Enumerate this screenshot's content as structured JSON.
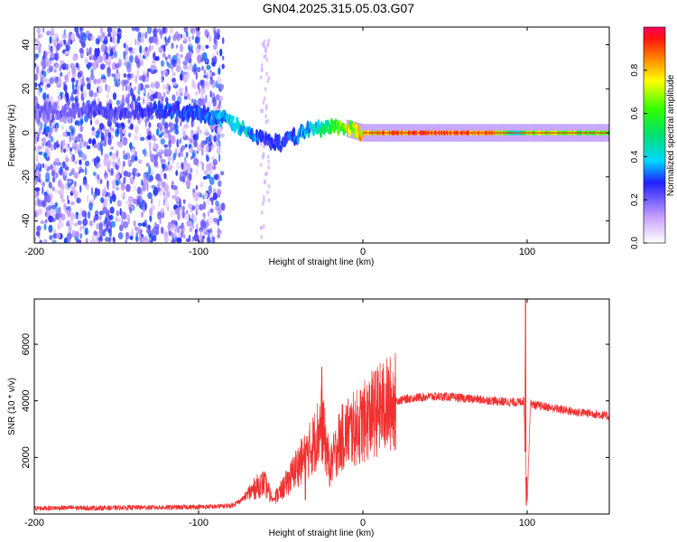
{
  "title": "GN04.2025.315.05.03.G07",
  "chart_data": [
    {
      "type": "heatmap",
      "name": "spectrogram",
      "xlabel": "Height of straight line (km)",
      "ylabel": "Frequency (Hz)",
      "xlim": [
        -200,
        150
      ],
      "ylim": [
        -50,
        48
      ],
      "xticks": [
        -200,
        -100,
        0,
        100
      ],
      "yticks": [
        -40,
        -20,
        0,
        20,
        40
      ],
      "colorbar": {
        "label": "Normalized spectral amplitude",
        "range": [
          0,
          1
        ],
        "ticks": [
          0.0,
          0.2,
          0.4,
          0.6,
          0.8
        ],
        "tick_labels": [
          "0.0",
          "0.2",
          "0.4",
          "0.6",
          "0.8"
        ]
      },
      "noise_region_x": [
        -200,
        -85
      ],
      "ridge": {
        "x": [
          -200,
          -180,
          -160,
          -140,
          -120,
          -100,
          -90,
          -80,
          -70,
          -60,
          -50,
          -40,
          -30,
          -20,
          -10,
          0,
          20,
          50,
          80,
          95,
          100,
          120,
          150
        ],
        "freq": [
          10,
          10,
          10,
          10,
          10,
          9,
          7,
          5,
          0,
          -3,
          -5,
          -1,
          2,
          3,
          2,
          0,
          0,
          0,
          0,
          0,
          0,
          0,
          0
        ],
        "amplitude": [
          0.2,
          0.2,
          0.25,
          0.25,
          0.3,
          0.3,
          0.35,
          0.45,
          0.4,
          0.3,
          0.3,
          0.35,
          0.45,
          0.55,
          0.75,
          0.85,
          0.9,
          0.95,
          0.9,
          0.4,
          0.75,
          0.7,
          0.65
        ]
      }
    },
    {
      "type": "line",
      "name": "snr",
      "xlabel": "Height of straight line (km)",
      "ylabel": "SNR (10 * v/v)",
      "xlim": [
        -200,
        150
      ],
      "ylim": [
        0,
        7600
      ],
      "xticks": [
        -200,
        -100,
        0,
        100
      ],
      "yticks": [
        2000,
        4000,
        6000
      ],
      "color": "#f03030",
      "series": [
        {
          "name": "SNR",
          "x": [
            -200,
            -180,
            -160,
            -140,
            -120,
            -100,
            -90,
            -80,
            -75,
            -70,
            -65,
            -60,
            -55,
            -50,
            -45,
            -40,
            -35,
            -30,
            -25,
            -20,
            -15,
            -10,
            -5,
            0,
            5,
            10,
            20,
            30,
            40,
            50,
            60,
            70,
            80,
            90,
            95,
            98,
            100,
            102,
            105,
            110,
            120,
            130,
            140,
            150
          ],
          "y": [
            200,
            220,
            210,
            230,
            230,
            250,
            260,
            300,
            450,
            700,
            950,
            1100,
            500,
            800,
            1200,
            1700,
            2000,
            2500,
            3200,
            1600,
            2500,
            2900,
            3000,
            3200,
            3500,
            3700,
            4000,
            4100,
            4150,
            4150,
            4100,
            4050,
            4000,
            3950,
            3950,
            4000,
            400,
            3900,
            3850,
            3800,
            3700,
            3600,
            3550,
            3450
          ]
        }
      ],
      "spikes": [
        {
          "x": 99,
          "y": 7600
        },
        {
          "x": 99.5,
          "y": 300
        },
        {
          "x": -25,
          "y": 5200
        },
        {
          "x": -35,
          "y": 500
        }
      ]
    }
  ]
}
